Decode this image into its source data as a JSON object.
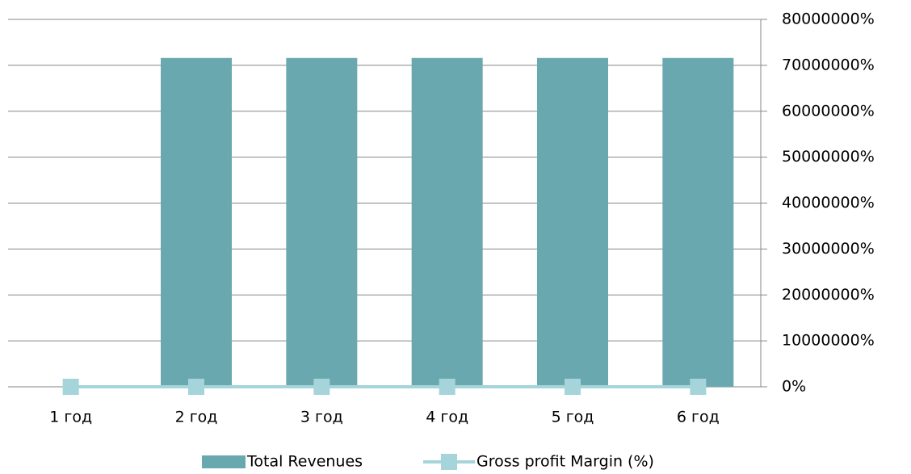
{
  "chart_data": {
    "type": "combo",
    "categories": [
      "1 год",
      "2 год",
      "3 год",
      "4 год",
      "5 год",
      "6 год"
    ],
    "series": [
      {
        "name": "Total Revenues",
        "type": "bar",
        "color": "#6aa8b0",
        "values": [
          0,
          71600000,
          71600000,
          71600000,
          71600000,
          71600000
        ]
      },
      {
        "name": "Gross profit Margin (%)",
        "type": "line",
        "color": "#a5d4da",
        "values": [
          0,
          0,
          0,
          0,
          0,
          0
        ]
      }
    ],
    "ylim": [
      0,
      80000000
    ],
    "yticks": [
      {
        "value": 0,
        "label": "0%"
      },
      {
        "value": 10000000,
        "label": "10000000%"
      },
      {
        "value": 20000000,
        "label": "20000000%"
      },
      {
        "value": 30000000,
        "label": "30000000%"
      },
      {
        "value": 40000000,
        "label": "40000000%"
      },
      {
        "value": 50000000,
        "label": "50000000%"
      },
      {
        "value": 60000000,
        "label": "60000000%"
      },
      {
        "value": 70000000,
        "label": "70000000%"
      },
      {
        "value": 80000000,
        "label": "80000000%"
      }
    ],
    "grid": true,
    "legend": "bottom"
  }
}
